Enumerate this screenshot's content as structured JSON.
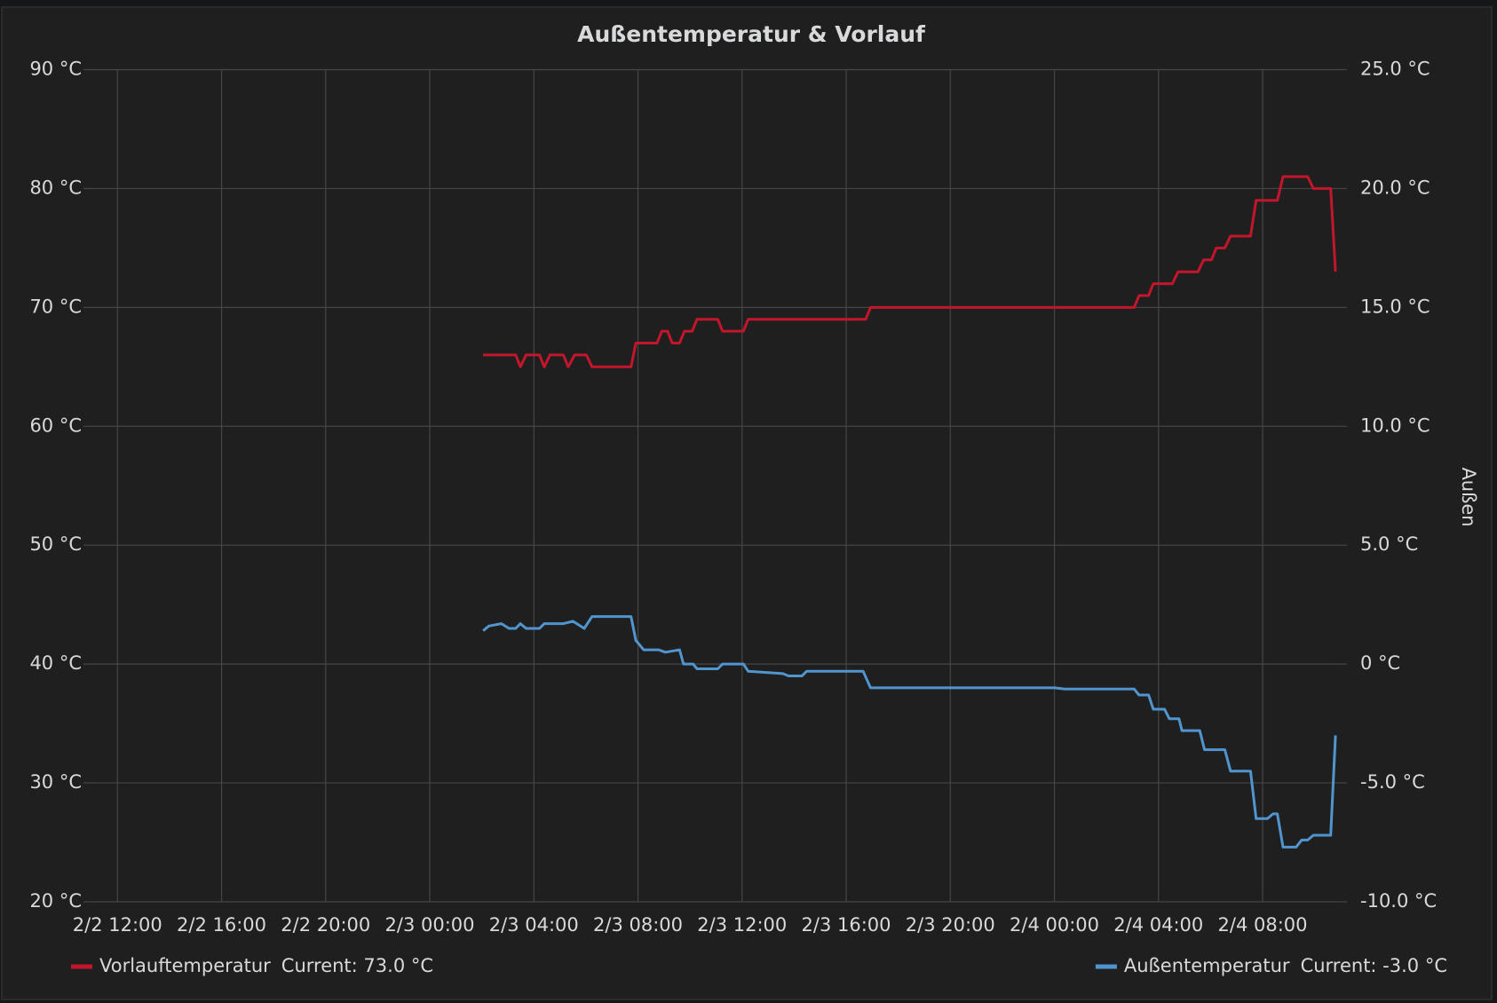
{
  "chart_data": {
    "type": "line",
    "title": "Außentemperatur & Vorlauf",
    "y2_label": "Außen",
    "grid": true,
    "xlim": [
      "2/2 10:58",
      "2/4 10:58"
    ],
    "xticks": [
      "2/2 12:00",
      "2/2 16:00",
      "2/2 20:00",
      "2/3 00:00",
      "2/3 04:00",
      "2/3 08:00",
      "2/3 12:00",
      "2/3 16:00",
      "2/3 20:00",
      "2/4 00:00",
      "2/4 04:00",
      "2/4 08:00"
    ],
    "ylim": [
      20,
      90
    ],
    "yticks": [
      {
        "value": 20,
        "label": "20 °C"
      },
      {
        "value": 30,
        "label": "30 °C"
      },
      {
        "value": 40,
        "label": "40 °C"
      },
      {
        "value": 50,
        "label": "50 °C"
      },
      {
        "value": 60,
        "label": "60 °C"
      },
      {
        "value": 70,
        "label": "70 °C"
      },
      {
        "value": 80,
        "label": "80 °C"
      },
      {
        "value": 90,
        "label": "90 °C"
      }
    ],
    "y2lim": [
      -10,
      25
    ],
    "y2ticks": [
      {
        "value": -10,
        "label": "-10.0 °C"
      },
      {
        "value": -5,
        "label": "-5.0 °C"
      },
      {
        "value": 0,
        "label": "0 °C"
      },
      {
        "value": 5,
        "label": "5.0 °C"
      },
      {
        "value": 10,
        "label": "10.0 °C"
      },
      {
        "value": 15,
        "label": "15.0 °C"
      },
      {
        "value": 20,
        "label": "20.0 °C"
      },
      {
        "value": 25,
        "label": "25.0 °C"
      }
    ],
    "series": [
      {
        "name": "Vorlauftemperatur",
        "color": "#c4162a",
        "current": {
          "value": 73,
          "label": "Current: 73.0 °C"
        },
        "x": [
          "2/3 02:03",
          "2/3 03:18",
          "2/3 03:29",
          "2/3 03:42",
          "2/3 04:13",
          "2/3 04:24",
          "2/3 04:37",
          "2/3 05:08",
          "2/3 05:19",
          "2/3 05:34",
          "2/3 06:01",
          "2/3 06:14",
          "2/3 07:44",
          "2/3 07:55",
          "2/3 08:44",
          "2/3 08:55",
          "2/3 09:08",
          "2/3 09:19",
          "2/3 09:36",
          "2/3 09:47",
          "2/3 10:05",
          "2/3 10:16",
          "2/3 11:04",
          "2/3 11:15",
          "2/3 12:03",
          "2/3 12:14",
          "2/3 16:45",
          "2/3 16:56",
          "2/4 03:04",
          "2/4 03:15",
          "2/4 03:37",
          "2/4 03:48",
          "2/4 04:32",
          "2/4 04:45",
          "2/4 05:31",
          "2/4 05:44",
          "2/4 06:02",
          "2/4 06:13",
          "2/4 06:33",
          "2/4 06:46",
          "2/4 07:32",
          "2/4 07:45",
          "2/4 08:34",
          "2/4 08:47",
          "2/4 09:44",
          "2/4 09:57",
          "2/4 10:37",
          "2/4 10:48"
        ],
        "values": [
          66,
          66,
          65,
          66,
          66,
          65,
          66,
          66,
          65,
          66,
          66,
          65,
          65,
          67,
          67,
          68,
          68,
          67,
          67,
          68,
          68,
          69,
          69,
          68,
          68,
          69,
          69,
          70,
          70,
          71,
          71,
          72,
          72,
          73,
          73,
          74,
          74,
          75,
          75,
          76,
          76,
          79,
          79,
          81,
          81,
          80,
          80,
          73
        ]
      },
      {
        "name": "Außentemperatur",
        "color": "#5195ce",
        "axis": "y2",
        "current": {
          "value": -3,
          "label": "Current: -3.0 °C"
        },
        "x": [
          "2/3 02:03",
          "2/3 02:16",
          "2/3 02:45",
          "2/3 03:03",
          "2/3 03:18",
          "2/3 03:29",
          "2/3 03:42",
          "2/3 04:13",
          "2/3 04:24",
          "2/3 05:08",
          "2/3 05:30",
          "2/3 05:56",
          "2/3 06:14",
          "2/3 07:44",
          "2/3 07:55",
          "2/3 08:13",
          "2/3 08:48",
          "2/3 09:03",
          "2/3 09:36",
          "2/3 09:45",
          "2/3 10:07",
          "2/3 10:16",
          "2/3 11:04",
          "2/3 11:15",
          "2/3 12:03",
          "2/3 12:14",
          "2/3 13:34",
          "2/3 13:47",
          "2/3 14:18",
          "2/3 14:29",
          "2/3 15:39",
          "2/3 16:39",
          "2/3 16:56",
          "2/4 00:01",
          "2/4 00:23",
          "2/4 03:04",
          "2/4 03:15",
          "2/4 03:37",
          "2/4 03:48",
          "2/4 04:14",
          "2/4 04:25",
          "2/4 04:47",
          "2/4 04:54",
          "2/4 05:35",
          "2/4 05:46",
          "2/4 06:33",
          "2/4 06:46",
          "2/4 07:32",
          "2/4 07:45",
          "2/4 08:11",
          "2/4 08:24",
          "2/4 08:34",
          "2/4 08:47",
          "2/4 09:17",
          "2/4 09:30",
          "2/4 09:44",
          "2/4 09:57",
          "2/4 10:37",
          "2/4 10:48"
        ],
        "values": [
          1.4,
          1.6,
          1.7,
          1.5,
          1.5,
          1.7,
          1.5,
          1.5,
          1.7,
          1.7,
          1.8,
          1.5,
          2.0,
          2.0,
          1.0,
          0.6,
          0.6,
          0.5,
          0.6,
          0,
          0,
          -0.2,
          -0.2,
          0,
          0,
          -0.3,
          -0.4,
          -0.5,
          -0.5,
          -0.3,
          -0.3,
          -0.3,
          -1.0,
          -1.0,
          -1.05,
          -1.05,
          -1.3,
          -1.3,
          -1.9,
          -1.9,
          -2.3,
          -2.3,
          -2.8,
          -2.8,
          -3.6,
          -3.6,
          -4.5,
          -4.5,
          -6.5,
          -6.5,
          -6.3,
          -6.3,
          -7.7,
          -7.7,
          -7.4,
          -7.4,
          -7.2,
          -7.2,
          -3.0
        ]
      }
    ]
  }
}
